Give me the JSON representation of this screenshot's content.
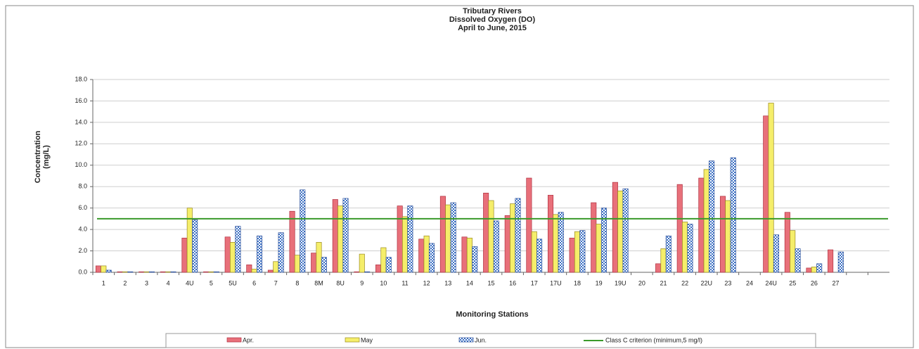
{
  "chart_data": {
    "type": "bar",
    "title": [
      "Tributary Rivers",
      "Dissolved Oxygen (DO)",
      "April to June, 2015"
    ],
    "x_label": "Monitoring Stations",
    "y_label": [
      "Concentration",
      "(mg/L)"
    ],
    "categories": [
      "1",
      "2",
      "3",
      "4",
      "4U",
      "5",
      "5U",
      "6",
      "7",
      "8",
      "8M",
      "8U",
      "9",
      "10",
      "11",
      "12",
      "13",
      "14",
      "15",
      "16",
      "17",
      "17U",
      "18",
      "19",
      "19U",
      "20",
      "21",
      "22",
      "22U",
      "23",
      "24",
      "24U",
      "25",
      "26",
      "27",
      null,
      null
    ],
    "series": [
      {
        "name": "Apr.",
        "color": "#e8707a",
        "values": [
          0.6,
          0.05,
          0.05,
          0.05,
          3.2,
          0.05,
          3.3,
          0.7,
          0.2,
          5.7,
          1.8,
          6.8,
          0.05,
          0.7,
          6.2,
          3.1,
          7.1,
          3.3,
          7.4,
          5.3,
          8.8,
          7.2,
          3.2,
          6.5,
          8.4,
          null,
          0.8,
          8.2,
          8.8,
          7.1,
          null,
          14.6,
          5.6,
          0.4,
          2.1,
          null,
          null
        ]
      },
      {
        "name": "May",
        "color": "#f5ee6a",
        "values": [
          0.6,
          0.05,
          0.05,
          0.05,
          6.0,
          0.05,
          2.8,
          0.3,
          1.0,
          1.6,
          2.8,
          6.2,
          1.7,
          2.3,
          5.2,
          3.4,
          6.3,
          3.2,
          6.7,
          6.4,
          3.8,
          5.4,
          3.8,
          4.5,
          7.6,
          null,
          2.2,
          4.7,
          9.6,
          6.7,
          null,
          15.8,
          3.9,
          0.5,
          null,
          null,
          null
        ]
      },
      {
        "name": "Jun.",
        "color": "#5b8fd8",
        "values": [
          0.2,
          0.05,
          0.05,
          0.05,
          4.9,
          0.05,
          4.3,
          3.4,
          3.7,
          7.7,
          1.4,
          6.9,
          0.05,
          1.4,
          6.2,
          2.7,
          6.5,
          2.4,
          4.8,
          6.9,
          3.1,
          5.6,
          3.9,
          6.0,
          7.8,
          null,
          3.4,
          4.5,
          10.4,
          10.7,
          null,
          3.5,
          2.2,
          0.8,
          1.9,
          null,
          null
        ]
      }
    ],
    "reference_line": {
      "name": "Class C criterion (minimum,5 mg/l)",
      "value": 5,
      "color": "#3a9a2a"
    },
    "ylim": [
      0,
      18
    ],
    "yticks": [
      {
        "value": 0,
        "label": "0.0"
      },
      {
        "value": 2,
        "label": "2.0"
      },
      {
        "value": 4,
        "label": "4.0"
      },
      {
        "value": 6,
        "label": "6.0"
      },
      {
        "value": 8,
        "label": "8.0"
      },
      {
        "value": 10,
        "label": "10.0"
      },
      {
        "value": 12,
        "label": "12.0"
      },
      {
        "value": 14,
        "label": "14.0"
      },
      {
        "value": 16,
        "label": "16.0"
      },
      {
        "value": 18,
        "label": "18.0"
      }
    ],
    "grid": true,
    "legend": "bottom"
  }
}
